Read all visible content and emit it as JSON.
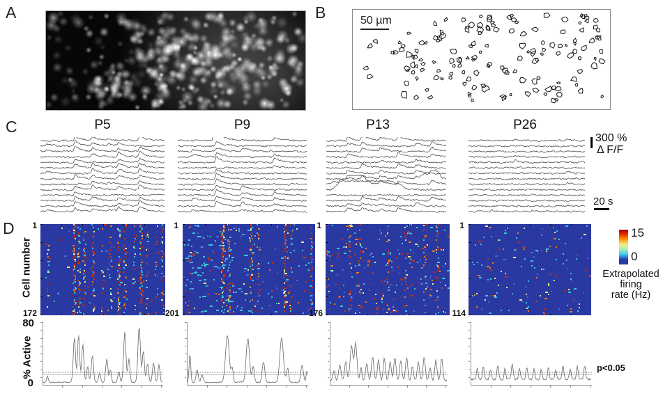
{
  "panels": {
    "A": {
      "label": "A"
    },
    "B": {
      "label": "B",
      "scale_bar": "50 µm"
    },
    "C": {
      "label": "C",
      "trace_titles": [
        "P5",
        "P9",
        "P13",
        "P26"
      ],
      "amplitude_scale": {
        "value": "300 %",
        "unit": "Δ F/F"
      },
      "time_scale": "20 s"
    },
    "D": {
      "label": "D",
      "y_axis": "Cell number",
      "heatmaps": [
        {
          "first_cell": "1",
          "last_cell": "172"
        },
        {
          "first_cell": "1",
          "last_cell": "201"
        },
        {
          "first_cell": "1",
          "last_cell": "176"
        },
        {
          "first_cell": "1",
          "last_cell": "114"
        }
      ],
      "colorbar": {
        "max": "15",
        "min": "0",
        "title_lines": [
          "Extrapolated",
          "firing",
          "rate (Hz)"
        ]
      },
      "active_plots": {
        "y_axis": "% Active",
        "y_max": "80",
        "y_min": "0",
        "threshold_label": "p<0.05"
      }
    }
  },
  "palette": {
    "heat_bg": "#2a39a2",
    "red": "#c23418",
    "dred": "#99200e",
    "orange": "#e87d1e",
    "yellow": "#eee88a",
    "cyan": "#3cc4da",
    "lblue": "#4b6ad0",
    "colorbar": [
      "#a80000",
      "#e83800",
      "#ff9c00",
      "#f4ee8e",
      "#a8ecb8",
      "#3cc8ec",
      "#2838b0",
      "#2a39a2"
    ]
  }
}
